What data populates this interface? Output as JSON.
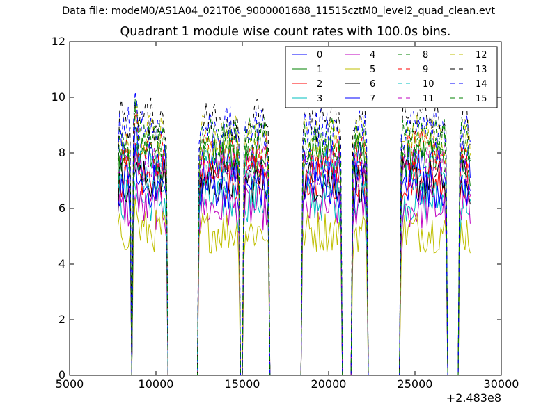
{
  "suptitle": "Data file: modeM0/AS1A04_021T06_9000001688_11515cztM0_level2_quad_clean.evt",
  "chart_data": {
    "type": "line",
    "title": "Quadrant 1 module wise count rates with 100.0s bins.",
    "xlim": [
      5000,
      30000
    ],
    "ylim": [
      0,
      12
    ],
    "xticks": [
      5000,
      10000,
      15000,
      20000,
      25000,
      30000
    ],
    "yticks": [
      0,
      2,
      4,
      6,
      8,
      10,
      12
    ],
    "x_offset_label": "+2.483e8",
    "grid": false,
    "legend_position": "upper-right",
    "legend_columns": 4,
    "segments": [
      [
        7800,
        8550
      ],
      [
        8700,
        10600
      ],
      [
        12500,
        14800
      ],
      [
        15050,
        16550
      ],
      [
        18450,
        20700
      ],
      [
        21400,
        22250
      ],
      [
        24150,
        26850
      ],
      [
        27550,
        28200
      ]
    ],
    "series": [
      {
        "name": "0",
        "color": "#0000ff",
        "dash": "solid",
        "level": 7.6
      },
      {
        "name": "1",
        "color": "#008000",
        "dash": "solid",
        "level": 7.8
      },
      {
        "name": "2",
        "color": "#ff0000",
        "dash": "solid",
        "level": 7.1
      },
      {
        "name": "3",
        "color": "#00bfbf",
        "dash": "solid",
        "level": 6.3
      },
      {
        "name": "4",
        "color": "#bf00bf",
        "dash": "solid",
        "level": 6.0
      },
      {
        "name": "5",
        "color": "#bfbf00",
        "dash": "solid",
        "level": 5.2
      },
      {
        "name": "6",
        "color": "#000000",
        "dash": "solid",
        "level": 7.0
      },
      {
        "name": "7",
        "color": "#0000ff",
        "dash": "solid",
        "level": 6.8
      },
      {
        "name": "8",
        "color": "#008000",
        "dash": "dashed",
        "level": 8.4
      },
      {
        "name": "9",
        "color": "#ff0000",
        "dash": "dashed",
        "level": 8.0
      },
      {
        "name": "10",
        "color": "#00bfbf",
        "dash": "dashed",
        "level": 7.3
      },
      {
        "name": "11",
        "color": "#bf00bf",
        "dash": "dashed",
        "level": 7.5
      },
      {
        "name": "12",
        "color": "#bfbf00",
        "dash": "dashed",
        "level": 8.6
      },
      {
        "name": "13",
        "color": "#000000",
        "dash": "dashed",
        "level": 9.2
      },
      {
        "name": "14",
        "color": "#0000ff",
        "dash": "dashed",
        "level": 8.9
      },
      {
        "name": "15",
        "color": "#008000",
        "dash": "dashed",
        "level": 8.5
      }
    ]
  }
}
